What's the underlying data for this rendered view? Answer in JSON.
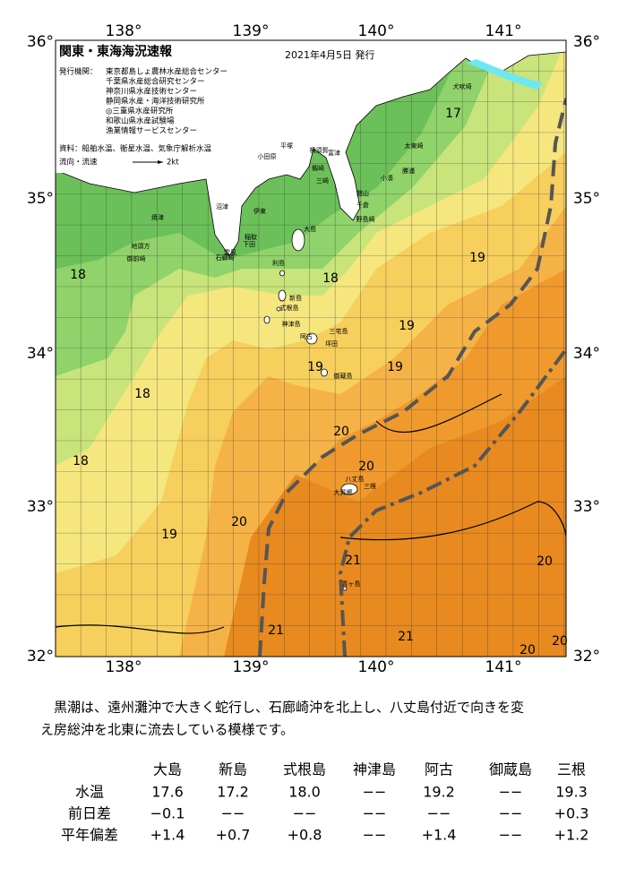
{
  "map": {
    "title": "関東・東海海況速報",
    "date": "2021年4月5日 発行",
    "publisher_label": "発行機関：",
    "publishers": [
      "東京都島しょ農林水産総合センター",
      "千葉県水産総合研究センター",
      "神奈川県水産技術センター",
      "静岡県水産・海洋技術研究所",
      "◎三重県水産研究所",
      "和歌山県水産試験場",
      "漁業情報サービスセンター"
    ],
    "sources": "資料：船舶水温、衛星水温、気象庁解析水温",
    "current_legend": "流向・流速",
    "current_scale": "2kt",
    "lon_labels": [
      "138°",
      "139°",
      "140°",
      "141°"
    ],
    "lat_labels": [
      "36°",
      "35°",
      "34°",
      "33°",
      "32°"
    ],
    "isotherm_labels": [
      "17",
      "18",
      "18",
      "19",
      "19",
      "19",
      "19",
      "18",
      "20",
      "18",
      "20",
      "19",
      "20",
      "21",
      "20",
      "21",
      "21",
      "20",
      "20"
    ],
    "place_names": [
      "犬吠埼",
      "太東崎",
      "勝浦",
      "小湊",
      "館山",
      "千倉",
      "野島崎",
      "富津",
      "横須賀",
      "平塚",
      "小田原",
      "剱崎",
      "三崎",
      "沼津",
      "伊東",
      "稲取",
      "下田",
      "雲見",
      "石廊崎",
      "焼津",
      "地頭方",
      "御前崎",
      "大島",
      "利島",
      "新島",
      "式根島",
      "神津島",
      "三宅島",
      "阿古",
      "坪田",
      "御蔵島",
      "八丈島",
      "大賀郷",
      "三根",
      "青ヶ島"
    ]
  },
  "description": [
    "黒潮は、遠州灘沖で大きく蛇行し、石廊崎沖を北上し、八丈島付近で向きを変",
    "え房総沖を北東に流去している模様です。"
  ],
  "table": {
    "headers": [
      "大島",
      "新島",
      "式根島",
      "神津島",
      "阿古",
      "御蔵島",
      "三根"
    ],
    "rows": [
      {
        "label": "水温",
        "cells": [
          "17.6",
          "17.2",
          "18.0",
          "−−",
          "19.2",
          "−−",
          "19.3"
        ]
      },
      {
        "label": "前日差",
        "cells": [
          "−0.1",
          "−−",
          "−−",
          "−−",
          "−−",
          "−−",
          "+0.3"
        ]
      },
      {
        "label": "平年偏差",
        "cells": [
          "+1.4",
          "+0.7",
          "+0.8",
          "−−",
          "+1.4",
          "−−",
          "+1.2"
        ]
      }
    ]
  }
}
